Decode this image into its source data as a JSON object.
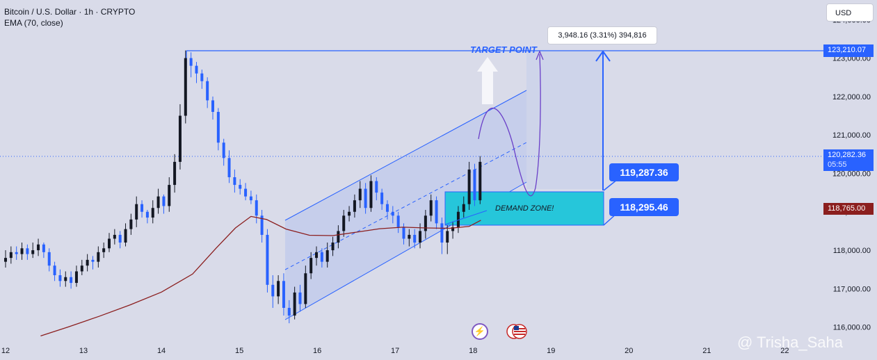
{
  "header": {
    "symbol": "Bitcoin / U.S. Dollar · 1h · CRYPTO",
    "indicator": "EMA (70, close)"
  },
  "currency_button": "USD",
  "annotations": {
    "target_point": "TARGET POINT",
    "demand_zone": "DEMAND ZONE!",
    "measure_label": "3,948.16 (3.31%) 394,816",
    "upper_box": "119,287.36",
    "lower_box": "118,295.46",
    "watermark": "@ Trisha_Saha"
  },
  "price_tags": {
    "target": "123,210.07",
    "current": "120,282.36",
    "countdown": "05:55",
    "ema": "118,765.00"
  },
  "colors": {
    "background": "#d9dbe9",
    "up_candle": "#131722",
    "down_candle": "#2962ff",
    "ema_line": "#8b1e1e",
    "channel": "#2962ff",
    "demand_zone": "#26c6da",
    "projection": "#6a3fc8"
  },
  "icons": [
    "lightning-icon",
    "us-flags-icon"
  ],
  "chart_data": {
    "type": "candlestick",
    "title": "Bitcoin / U.S. Dollar · 1h · CRYPTO",
    "x_ticks": [
      "12",
      "13",
      "14",
      "15",
      "16",
      "17",
      "18",
      "19",
      "20",
      "21",
      "22"
    ],
    "y_ticks": [
      "116,000.00",
      "117,000.00",
      "118,000.00",
      "119,000.00",
      "120,000.00",
      "121,000.00",
      "122,000.00",
      "123,000.00",
      "124,000.00"
    ],
    "ylim": [
      115650,
      124150
    ],
    "xlim": [
      12.0,
      23.0
    ],
    "grid": false,
    "series": [
      {
        "name": "EMA (70, close)",
        "x": [
          12.45,
          12.8,
          13.2,
          13.6,
          14.0,
          14.4,
          14.7,
          14.95,
          15.15,
          15.35,
          15.6,
          15.9,
          16.2,
          16.5,
          16.8,
          17.1,
          17.4,
          17.7,
          17.95,
          18.1
        ],
        "values": [
          115770,
          116000,
          116280,
          116580,
          116910,
          117380,
          118050,
          118580,
          118880,
          118800,
          118550,
          118390,
          118380,
          118470,
          118560,
          118600,
          118580,
          118570,
          118620,
          118780
        ]
      }
    ],
    "candles": {
      "x": [
        12.0,
        12.07,
        12.14,
        12.21,
        12.28,
        12.35,
        12.42,
        12.49,
        12.56,
        12.63,
        12.7,
        12.77,
        12.84,
        12.91,
        12.98,
        13.05,
        13.12,
        13.19,
        13.26,
        13.33,
        13.4,
        13.47,
        13.54,
        13.61,
        13.68,
        13.75,
        13.82,
        13.89,
        13.96,
        14.03,
        14.1,
        14.17,
        14.24,
        14.31,
        14.38,
        14.45,
        14.52,
        14.59,
        14.66,
        14.73,
        14.8,
        14.87,
        14.94,
        15.01,
        15.08,
        15.15,
        15.22,
        15.29,
        15.36,
        15.43,
        15.5,
        15.57,
        15.64,
        15.71,
        15.78,
        15.85,
        15.92,
        15.99,
        16.06,
        16.13,
        16.2,
        16.27,
        16.34,
        16.41,
        16.48,
        16.55,
        16.62,
        16.69,
        16.76,
        16.83,
        16.9,
        16.97,
        17.04,
        17.11,
        17.18,
        17.25,
        17.32,
        17.39,
        17.46,
        17.53,
        17.6,
        17.67,
        17.74,
        17.81,
        17.88,
        17.95,
        18.02,
        18.09
      ],
      "open": [
        117700,
        117800,
        117950,
        117900,
        118050,
        117900,
        118000,
        118150,
        117950,
        117600,
        117350,
        117200,
        117300,
        117150,
        117450,
        117600,
        117750,
        117700,
        117950,
        118050,
        118300,
        118400,
        118200,
        118550,
        118800,
        119200,
        119000,
        118850,
        119100,
        119400,
        119150,
        119700,
        120300,
        121500,
        123000,
        122800,
        122600,
        122400,
        121900,
        121600,
        120800,
        120400,
        119900,
        119700,
        119600,
        119400,
        119300,
        118900,
        118400,
        117100,
        116800,
        117200,
        116500,
        116300,
        116900,
        116600,
        117400,
        117800,
        117950,
        117700,
        118000,
        118200,
        118500,
        118900,
        119000,
        119300,
        119600,
        119100,
        119800,
        119500,
        119200,
        119000,
        118900,
        118600,
        118300,
        118400,
        118200,
        118500,
        118900,
        119300,
        118700,
        118200,
        118500,
        118600,
        119000,
        119200,
        120100,
        119300
      ],
      "close": [
        117800,
        117950,
        117900,
        118050,
        117900,
        118000,
        118150,
        117950,
        117600,
        117350,
        117200,
        117300,
        117150,
        117450,
        117600,
        117750,
        117700,
        117950,
        118050,
        118300,
        118400,
        118200,
        118550,
        118800,
        119200,
        119000,
        118850,
        119100,
        119400,
        119150,
        119700,
        120300,
        121500,
        123000,
        122800,
        122600,
        122400,
        121900,
        121600,
        120800,
        120400,
        119900,
        119700,
        119600,
        119400,
        119300,
        118900,
        118400,
        117100,
        116800,
        117200,
        116500,
        116300,
        116900,
        116600,
        117400,
        117800,
        117950,
        117700,
        118000,
        118200,
        118500,
        118900,
        119000,
        119300,
        119600,
        119100,
        119800,
        119500,
        119200,
        119000,
        118900,
        118600,
        118300,
        118400,
        118200,
        118500,
        118900,
        119300,
        118700,
        118200,
        118500,
        118600,
        119000,
        119200,
        120100,
        119300,
        120300
      ],
      "high": [
        118000,
        118100,
        118100,
        118200,
        118150,
        118200,
        118300,
        118200,
        118050,
        117700,
        117500,
        117450,
        117450,
        117600,
        117750,
        117900,
        117850,
        118100,
        118200,
        118450,
        118550,
        118500,
        118700,
        118950,
        119400,
        119300,
        119050,
        119300,
        119600,
        119450,
        119900,
        120500,
        121800,
        123200,
        123150,
        122900,
        122700,
        122500,
        122000,
        121700,
        120900,
        120600,
        120100,
        119850,
        119750,
        119550,
        119450,
        119050,
        118550,
        117350,
        117350,
        117400,
        116700,
        117050,
        117100,
        117600,
        117950,
        118100,
        118050,
        118200,
        118350,
        118650,
        119050,
        119150,
        119450,
        119800,
        119750,
        119950,
        119900,
        119600,
        119300,
        119150,
        119000,
        118700,
        118550,
        118550,
        118700,
        119050,
        119450,
        119400,
        118850,
        118650,
        118750,
        119150,
        119400,
        120300,
        120250,
        120450
      ],
      "low": [
        117550,
        117650,
        117750,
        117750,
        117750,
        117800,
        117850,
        117800,
        117450,
        117200,
        117050,
        117050,
        117000,
        117050,
        117350,
        117450,
        117500,
        117550,
        117800,
        117950,
        118150,
        118050,
        118100,
        118400,
        118600,
        118850,
        118700,
        118700,
        118950,
        118950,
        119000,
        119500,
        120100,
        121300,
        122500,
        122350,
        122200,
        121700,
        121400,
        120600,
        120200,
        119750,
        119500,
        119450,
        119300,
        119200,
        118700,
        118200,
        116900,
        116500,
        116600,
        116300,
        116100,
        116200,
        116400,
        116500,
        117250,
        117600,
        117550,
        117550,
        117850,
        118050,
        118350,
        118750,
        118850,
        119100,
        118950,
        119000,
        119300,
        119050,
        118800,
        118700,
        118450,
        118150,
        118100,
        118050,
        118050,
        118300,
        118750,
        118550,
        117900,
        117900,
        118300,
        118450,
        118850,
        119050,
        119150,
        119200
      ]
    },
    "annotations": [
      "TARGET POINT",
      "DEMAND ZONE!",
      "119,287.36",
      "118,295.46",
      "3,948.16 (3.31%) 394,816"
    ]
  }
}
